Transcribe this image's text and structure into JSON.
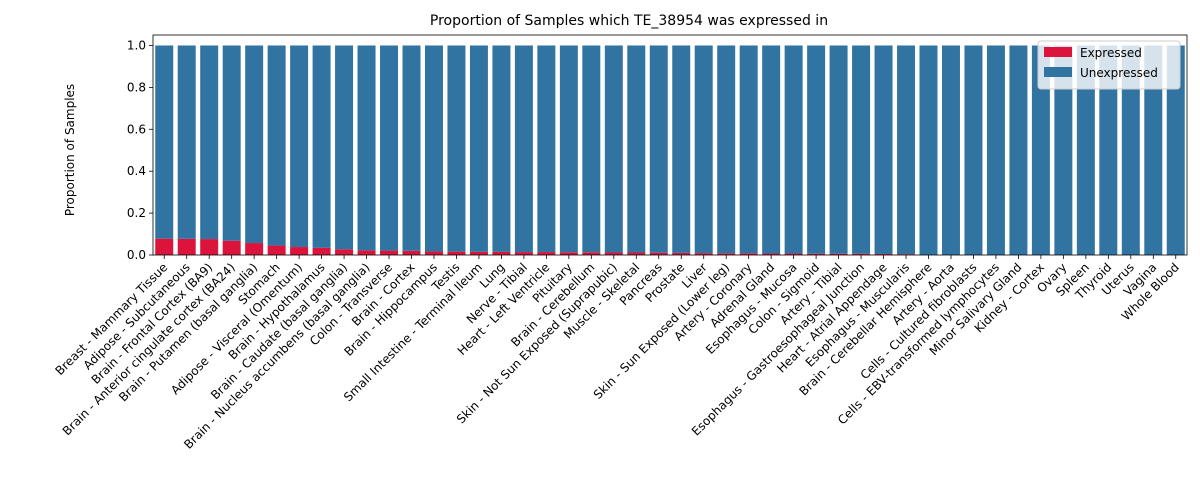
{
  "chart_data": {
    "type": "bar",
    "stacked": true,
    "title": "Proportion of Samples which TE_38954 was expressed in",
    "xlabel": "",
    "ylabel": "Proportion of Samples",
    "ylim": [
      0,
      1.05
    ],
    "yticks": [
      "0.0",
      "0.2",
      "0.4",
      "0.6",
      "0.8",
      "1.0"
    ],
    "legend_position": "top-right",
    "categories": [
      "Breast - Mammary Tissue",
      "Adipose - Subcutaneous",
      "Brain - Frontal Cortex (BA9)",
      "Brain - Anterior cingulate cortex (BA24)",
      "Brain - Putamen (basal ganglia)",
      "Stomach",
      "Adipose - Visceral (Omentum)",
      "Brain - Hypothalamus",
      "Brain - Caudate (basal ganglia)",
      "Brain - Nucleus accumbens (basal ganglia)",
      "Colon - Transverse",
      "Brain - Cortex",
      "Brain - Hippocampus",
      "Testis",
      "Small Intestine - Terminal Ileum",
      "Lung",
      "Nerve - Tibial",
      "Heart - Left Ventricle",
      "Pituitary",
      "Brain - Cerebellum",
      "Skin - Not Sun Exposed (Suprapubic)",
      "Muscle - Skeletal",
      "Pancreas",
      "Prostate",
      "Liver",
      "Skin - Sun Exposed (Lower leg)",
      "Artery - Coronary",
      "Adrenal Gland",
      "Esophagus - Mucosa",
      "Colon - Sigmoid",
      "Artery - Tibial",
      "Esophagus - Gastroesophageal Junction",
      "Heart - Atrial Appendage",
      "Esophagus - Muscularis",
      "Brain - Cerebellar Hemisphere",
      "Artery - Aorta",
      "Cells - Cultured fibroblasts",
      "Cells - EBV-transformed lymphocytes",
      "Minor Salivary Gland",
      "Kidney - Cortex",
      "Ovary",
      "Spleen",
      "Thyroid",
      "Uterus",
      "Vagina",
      "Whole Blood"
    ],
    "series": [
      {
        "name": "Expressed",
        "color": "#dc143c",
        "values": [
          0.078,
          0.077,
          0.076,
          0.068,
          0.057,
          0.045,
          0.038,
          0.034,
          0.027,
          0.022,
          0.021,
          0.02,
          0.017,
          0.016,
          0.015,
          0.015,
          0.014,
          0.014,
          0.013,
          0.013,
          0.012,
          0.012,
          0.011,
          0.01,
          0.009,
          0.008,
          0.008,
          0.007,
          0.007,
          0.006,
          0.006,
          0.006,
          0.005,
          0.004,
          0.0,
          0.0,
          0.0,
          0.0,
          0.0,
          0.0,
          0.0,
          0.0,
          0.0,
          0.0,
          0.0,
          0.0
        ]
      },
      {
        "name": "Unexpressed",
        "color": "#3274a1",
        "values": [
          0.922,
          0.923,
          0.924,
          0.932,
          0.943,
          0.955,
          0.962,
          0.966,
          0.973,
          0.978,
          0.979,
          0.98,
          0.983,
          0.984,
          0.985,
          0.985,
          0.986,
          0.986,
          0.987,
          0.987,
          0.988,
          0.988,
          0.989,
          0.99,
          0.991,
          0.992,
          0.992,
          0.993,
          0.993,
          0.994,
          0.994,
          0.994,
          0.995,
          0.996,
          1.0,
          1.0,
          1.0,
          1.0,
          1.0,
          1.0,
          1.0,
          1.0,
          1.0,
          1.0,
          1.0,
          1.0
        ]
      }
    ]
  }
}
